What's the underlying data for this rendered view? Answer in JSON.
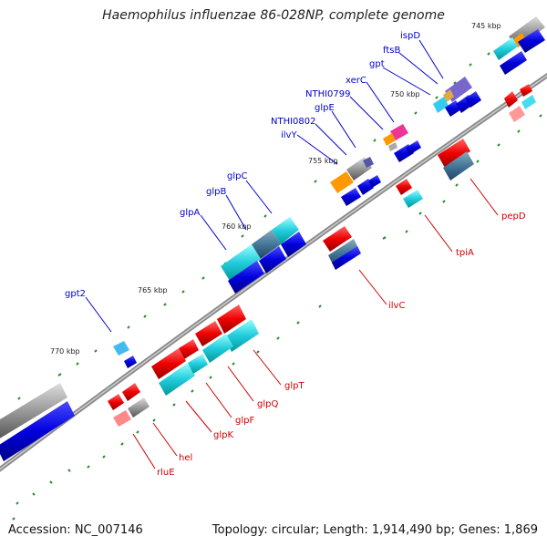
{
  "title": "Haemophilus influenzae 86-028NP, complete genome",
  "footer": {
    "accession": "Accession: NC_007146",
    "summary": "Topology: circular; Length: 1,914,490 bp; Genes: 1,869"
  },
  "kbp_labels": [
    "745 kbp",
    "750 kbp",
    "755 kbp",
    "760 kbp",
    "765 kbp",
    "770 kbp"
  ],
  "forward_gene_labels": [
    "ispD",
    "ftsB",
    "gpt",
    "xerC",
    "NTHI0799",
    "glpE",
    "NTHI0802",
    "ilvY",
    "glpC",
    "glpB",
    "glpA",
    "gpt2"
  ],
  "reverse_gene_labels": [
    "pepD",
    "tpiA",
    "ilvC",
    "glpT",
    "glpQ",
    "glpF",
    "glpK",
    "hel",
    "rluE"
  ],
  "colors": {
    "forward_label": "#0000cc",
    "reverse_label": "#cc0000",
    "backbone": "#888888",
    "tick": "#228822",
    "cds": "#0000ee",
    "rna": "#ee0000"
  }
}
